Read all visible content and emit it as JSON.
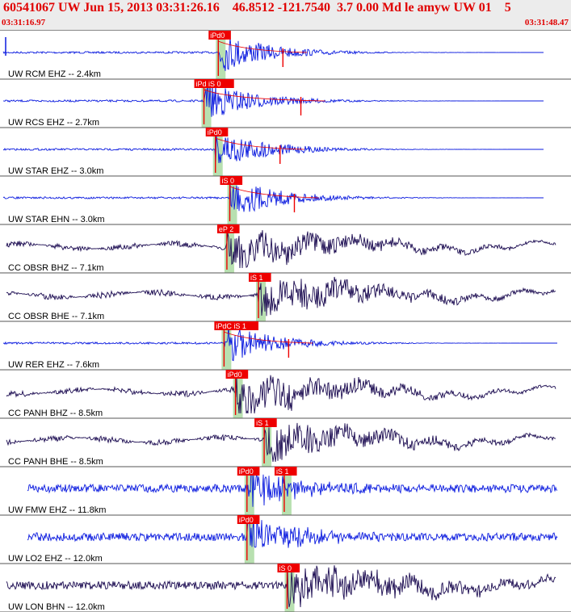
{
  "header": {
    "title": "60541067 UW Jun 15, 2013 03:31:26.16    46.8512 -121.7540  3.7 0.00 Md le amyw UW 01    5",
    "time_start": "03:31:16.97",
    "time_end": "03:31:48.47"
  },
  "colors": {
    "high_gain_trace": "#0a1adf",
    "broadband_trace": "#1a0a50",
    "pick": "#ee0000",
    "pick_window": "#b8e0b0",
    "separator": "#555555"
  },
  "traces": [
    {
      "label": "UW RCM EHZ -- 2.4km",
      "picks": [
        {
          "label": "iPd0",
          "time": 3.75
        }
      ],
      "kind": "short"
    },
    {
      "label": "UW RCS EHZ -- 2.7km",
      "picks": [
        {
          "label": "iPd iS 0",
          "time": 3.5
        }
      ],
      "kind": "short"
    },
    {
      "label": "UW STAR EHZ -- 3.0km",
      "picks": [
        {
          "label": "iPd0",
          "time": 3.7
        }
      ],
      "kind": "short"
    },
    {
      "label": "UW STAR EHN -- 3.0km",
      "picks": [
        {
          "label": "iS 0",
          "time": 3.95
        }
      ],
      "kind": "short"
    },
    {
      "label": "CC OBSR BHZ -- 7.1km",
      "picks": [
        {
          "label": "eP 2",
          "time": 3.9
        }
      ],
      "kind": "broad"
    },
    {
      "label": "CC OBSR BHE -- 7.1km",
      "picks": [
        {
          "label": "iS 1",
          "time": 4.45
        }
      ],
      "kind": "broad"
    },
    {
      "label": "UW RER EHZ -- 7.6km",
      "picks": [
        {
          "label": "iPdC iS 1",
          "time": 3.85
        }
      ],
      "kind": "short"
    },
    {
      "label": "CC PANH BHZ -- 8.5km",
      "picks": [
        {
          "label": "iPd0",
          "time": 4.05
        }
      ],
      "kind": "broad"
    },
    {
      "label": "CC PANH BHE -- 8.5km",
      "picks": [
        {
          "label": "iS 1",
          "time": 4.55
        }
      ],
      "kind": "broad"
    },
    {
      "label": "UW FMW EHZ -- 11.8km",
      "picks": [
        {
          "label": "iPd0",
          "time": 4.25
        },
        {
          "label": "iS 1",
          "time": 4.9
        }
      ],
      "kind": "short"
    },
    {
      "label": "UW LO2 EHZ -- 12.0km",
      "picks": [
        {
          "label": "iPd0",
          "time": 4.25
        }
      ],
      "kind": "short"
    },
    {
      "label": "UW LON BHN -- 12.0km",
      "picks": [
        {
          "label": "iS 0",
          "time": 4.95
        }
      ],
      "kind": "broad"
    }
  ]
}
